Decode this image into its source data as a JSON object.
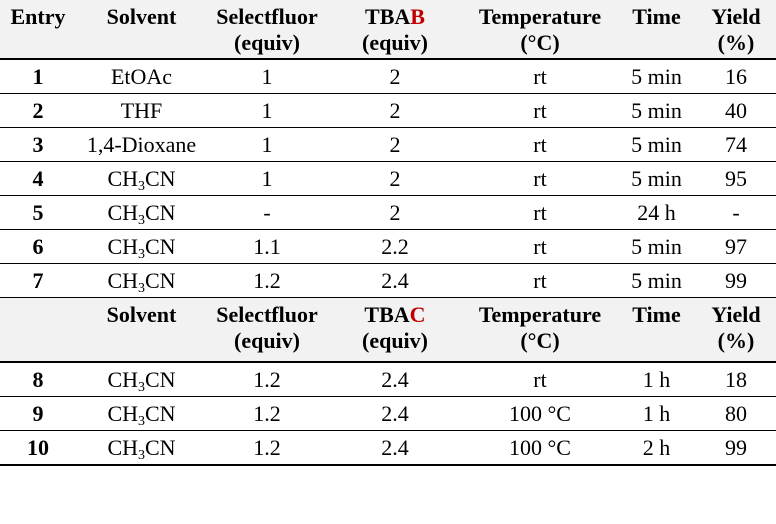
{
  "header1": {
    "entry": "Entry",
    "solvent": "Solvent",
    "selectfluor_l1": "Selectfluor",
    "selectfluor_l2": "(equiv)",
    "tba_prefix": "TBA",
    "tba_letter": "B",
    "tba_letter_color": "#c00000",
    "tba_l2": "(equiv)",
    "temp_l1": "Temperature",
    "temp_l2": "(°C)",
    "time": "Time",
    "yield_l1": "Yield",
    "yield_l2": "(%)"
  },
  "header2": {
    "entry": "",
    "solvent": "Solvent",
    "selectfluor_l1": "Selectfluor",
    "selectfluor_l2": "(equiv)",
    "tba_prefix": "TBA",
    "tba_letter": "C",
    "tba_letter_color": "#c00000",
    "tba_l2": "(equiv)",
    "temp_l1": "Temperature",
    "temp_l2": "(°C)",
    "time": "Time",
    "yield_l1": "Yield",
    "yield_l2": "(%)"
  },
  "solvent_ch3cn": {
    "a": "CH",
    "sub": "3",
    "b": "CN"
  },
  "rows1": [
    {
      "entry": "1",
      "solvent": "EtOAc",
      "selectfluor": "1",
      "tba": "2",
      "temp": "rt",
      "time": "5 min",
      "yield": "16"
    },
    {
      "entry": "2",
      "solvent": "THF",
      "selectfluor": "1",
      "tba": "2",
      "temp": "rt",
      "time": "5 min",
      "yield": "40"
    },
    {
      "entry": "3",
      "solvent": "1,4-Dioxane",
      "selectfluor": "1",
      "tba": "2",
      "temp": "rt",
      "time": "5 min",
      "yield": "74"
    },
    {
      "entry": "4",
      "solvent": "CH3CN",
      "selectfluor": "1",
      "tba": "2",
      "temp": "rt",
      "time": "5 min",
      "yield": "95"
    },
    {
      "entry": "5",
      "solvent": "CH3CN",
      "selectfluor": "-",
      "tba": "2",
      "temp": "rt",
      "time": "24 h",
      "yield": "-"
    },
    {
      "entry": "6",
      "solvent": "CH3CN",
      "selectfluor": "1.1",
      "tba": "2.2",
      "temp": "rt",
      "time": "5 min",
      "yield": "97"
    },
    {
      "entry": "7",
      "solvent": "CH3CN",
      "selectfluor": "1.2",
      "tba": "2.4",
      "temp": "rt",
      "time": "5 min",
      "yield": "99"
    }
  ],
  "rows2": [
    {
      "entry": "8",
      "solvent": "CH3CN",
      "selectfluor": "1.2",
      "tba": "2.4",
      "temp": "rt",
      "time": "1 h",
      "yield": "18"
    },
    {
      "entry": "9",
      "solvent": "CH3CN",
      "selectfluor": "1.2",
      "tba": "2.4",
      "temp": "100 °C",
      "time": "1 h",
      "yield": "80"
    },
    {
      "entry": "10",
      "solvent": "CH3CN",
      "selectfluor": "1.2",
      "tba": "2.4",
      "temp": "100 °C",
      "time": "2 h",
      "yield": "99"
    }
  ]
}
